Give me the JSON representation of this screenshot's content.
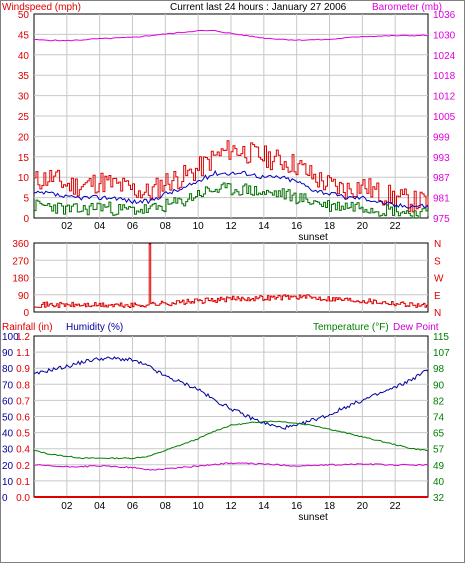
{
  "colors": {
    "wind": "#e00000",
    "gust": "#e00000",
    "avg": "#0000c0",
    "low": "#007000",
    "barometer": "#e000e0",
    "direction": "#e00000",
    "humidity": "#0000a0",
    "temperature": "#008000",
    "dewpoint": "#d000d0",
    "rain": "#e00000",
    "grid": "#c8c8c8",
    "axis": "#000000"
  },
  "chart_data": [
    {
      "type": "line",
      "title": "Current last 24 hours : January 27 2006",
      "ylabel_left": "Windspeed (mph)",
      "ylabel_right": "Barometer (mb)",
      "xlabel": "sunset",
      "x_ticks": [
        "02",
        "04",
        "06",
        "08",
        "10",
        "12",
        "14",
        "16",
        "18",
        "20",
        "22"
      ],
      "x_range": [
        0,
        24
      ],
      "ylim_left": [
        0,
        50
      ],
      "ylim_right": [
        975,
        1036
      ],
      "y_ticks_left": [
        "0",
        "5",
        "10",
        "15",
        "20",
        "25",
        "30",
        "35",
        "40",
        "45",
        "50"
      ],
      "y_ticks_right": [
        "975",
        "981",
        "987",
        "993",
        "999",
        "1005",
        "1012",
        "1018",
        "1024",
        "1030",
        "1036"
      ],
      "grid": true,
      "series": [
        {
          "name": "Windspeed gust",
          "x": [
            0,
            1,
            2,
            3,
            4,
            5,
            6,
            7,
            8,
            9,
            10,
            11,
            12,
            13,
            14,
            15,
            16,
            17,
            18,
            19,
            20,
            21,
            22,
            23,
            24
          ],
          "y": [
            9,
            10,
            8,
            8,
            9,
            8,
            7,
            6,
            9,
            10,
            12,
            15,
            17,
            16,
            15,
            14,
            13,
            10,
            8,
            7,
            8,
            6,
            5,
            4,
            4
          ]
        },
        {
          "name": "Windspeed average",
          "x": [
            0,
            1,
            2,
            3,
            4,
            5,
            6,
            7,
            8,
            9,
            10,
            11,
            12,
            13,
            14,
            15,
            16,
            17,
            18,
            19,
            20,
            21,
            22,
            23,
            24
          ],
          "y": [
            6,
            6,
            5,
            5,
            5,
            5,
            4,
            4,
            6,
            7,
            9,
            11,
            11,
            11,
            10,
            10,
            9,
            7,
            6,
            5,
            5,
            4,
            3,
            3,
            3
          ]
        },
        {
          "name": "Windspeed low",
          "x": [
            0,
            1,
            2,
            3,
            4,
            5,
            6,
            7,
            8,
            9,
            10,
            11,
            12,
            13,
            14,
            15,
            16,
            17,
            18,
            19,
            20,
            21,
            22,
            23,
            24
          ],
          "y": [
            3,
            3,
            2,
            2,
            3,
            2,
            2,
            2,
            3,
            4,
            6,
            7,
            7,
            7,
            6,
            6,
            5,
            4,
            3,
            3,
            3,
            2,
            2,
            1,
            1
          ]
        },
        {
          "name": "Barometer",
          "axis": "right",
          "x": [
            0,
            2,
            4,
            6,
            8,
            10,
            11,
            12,
            14,
            16,
            18,
            20,
            22,
            24
          ],
          "y": [
            1028.3,
            1028.0,
            1028.6,
            1029.0,
            1030.0,
            1031.0,
            1031.0,
            1030.2,
            1028.8,
            1028.2,
            1028.4,
            1029.3,
            1029.5,
            1029.6
          ]
        }
      ]
    },
    {
      "type": "line",
      "xlabel": "",
      "x_range": [
        0,
        24
      ],
      "ylim_left": [
        0,
        360
      ],
      "y_ticks_left": [
        "0",
        "90",
        "180",
        "270",
        "360"
      ],
      "y_ticks_right": [
        "N",
        "S",
        "W",
        "E",
        "N"
      ],
      "grid": true,
      "series": [
        {
          "name": "Wind direction",
          "x": [
            0,
            1,
            2,
            3,
            4,
            5,
            6,
            6.9,
            7.0,
            7.1,
            8,
            9,
            10,
            11,
            12,
            13,
            14,
            15,
            16,
            17,
            18,
            19,
            20,
            21,
            22,
            23,
            24
          ],
          "y": [
            40,
            45,
            35,
            40,
            45,
            35,
            30,
            30,
            355,
            30,
            40,
            50,
            60,
            65,
            70,
            75,
            80,
            85,
            80,
            75,
            65,
            55,
            55,
            50,
            45,
            40,
            30
          ]
        }
      ]
    },
    {
      "type": "line",
      "ylabel_left": "Rainfall (in)",
      "ylabel_left2": "Humidity (%)",
      "ylabel_right": "Temperature (°F)",
      "ylabel_right2": "Dew Point",
      "xlabel": "sunset",
      "x_range": [
        0,
        24
      ],
      "ylim_humidity": [
        0,
        100
      ],
      "ylim_rain": [
        0,
        1.2
      ],
      "ylim_right": [
        32,
        115
      ],
      "y_ticks_humidity": [
        "0",
        "10",
        "20",
        "30",
        "40",
        "50",
        "60",
        "70",
        "80",
        "90",
        "100"
      ],
      "y_ticks_rain": [
        "0.0",
        "0.1",
        "0.2",
        "0.4",
        "0.5",
        "0.6",
        "0.7",
        "0.8",
        "0.9",
        "1.1",
        "1.2"
      ],
      "y_ticks_right": [
        "32",
        "40",
        "49",
        "57",
        "65",
        "74",
        "82",
        "90",
        "98",
        "107",
        "115"
      ],
      "grid": true,
      "series": [
        {
          "name": "Humidity",
          "x": [
            0,
            1,
            2,
            3,
            4,
            5,
            6,
            7,
            8,
            9,
            10,
            11,
            12,
            13,
            14,
            15,
            16,
            17,
            18,
            19,
            20,
            21,
            22,
            23,
            24
          ],
          "y": [
            76,
            79,
            81,
            84,
            86,
            86,
            85,
            81,
            75,
            71,
            67,
            60,
            55,
            50,
            46,
            43,
            44,
            48,
            51,
            56,
            60,
            64,
            68,
            73,
            79
          ]
        },
        {
          "name": "Temperature",
          "axis": "right",
          "x": [
            0,
            1,
            2,
            3,
            4,
            5,
            6,
            7,
            8,
            9,
            10,
            11,
            12,
            13,
            14,
            15,
            16,
            17,
            18,
            19,
            20,
            21,
            22,
            23,
            24
          ],
          "y": [
            56,
            54,
            53,
            52,
            52,
            52,
            52,
            53,
            56,
            59,
            62,
            66,
            69,
            70,
            71,
            71,
            70,
            69,
            67,
            65,
            63,
            61,
            59,
            57,
            56
          ]
        },
        {
          "name": "Dew Point",
          "axis": "right",
          "x": [
            0,
            2,
            4,
            6,
            7,
            8,
            10,
            12,
            14,
            16,
            18,
            20,
            22,
            24
          ],
          "y": [
            48.5,
            47.5,
            48.0,
            47.2,
            46.0,
            46.5,
            48.0,
            49.5,
            49.0,
            48.0,
            48.5,
            49.0,
            48.5,
            48.5
          ]
        },
        {
          "name": "Rainfall",
          "x": [
            0,
            24
          ],
          "y": [
            0,
            0
          ]
        }
      ]
    }
  ]
}
